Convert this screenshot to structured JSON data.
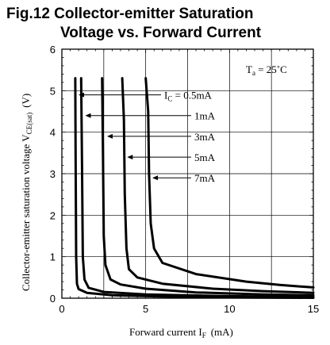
{
  "figure": {
    "title_line1": "Fig.12 Collector-emitter Saturation",
    "title_line2": "Voltage vs. Forward Current"
  },
  "chart_data": {
    "type": "line",
    "title": "Fig.12 Collector-emitter Saturation Voltage vs. Forward Current",
    "xlabel": "Forward current I",
    "xlabel_sub": "F",
    "xlabel_unit": "(mA)",
    "ylabel": "Collector-emitter saturation voltage V",
    "ylabel_sub": "CE(sat)",
    "ylabel_unit": "(V)",
    "xlim": [
      0,
      15
    ],
    "ylim": [
      0,
      6
    ],
    "xticks": [
      0,
      5,
      10,
      15
    ],
    "yticks": [
      0,
      1,
      2,
      3,
      4,
      5,
      6
    ],
    "grid": true,
    "annotation": {
      "main": "T",
      "sub": "a",
      "rest": " = 25˚C"
    },
    "series": [
      {
        "name": "I_C = 0.5mA",
        "label_main": "I",
        "label_sub": "C",
        "label_rest": " = 0.5mA",
        "points": [
          [
            0.8,
            5.3
          ],
          [
            0.82,
            3.5
          ],
          [
            0.85,
            1.0
          ],
          [
            0.9,
            0.35
          ],
          [
            1.0,
            0.22
          ],
          [
            1.5,
            0.13
          ],
          [
            3,
            0.07
          ],
          [
            6,
            0.04
          ],
          [
            10,
            0.02
          ],
          [
            15,
            0.01
          ]
        ]
      },
      {
        "name": "1mA",
        "label_main": "1mA",
        "label_sub": "",
        "label_rest": "",
        "points": [
          [
            1.15,
            5.3
          ],
          [
            1.2,
            3.2
          ],
          [
            1.25,
            1.0
          ],
          [
            1.35,
            0.45
          ],
          [
            1.6,
            0.25
          ],
          [
            2.5,
            0.15
          ],
          [
            5,
            0.09
          ],
          [
            10,
            0.05
          ],
          [
            15,
            0.03
          ]
        ]
      },
      {
        "name": "3mA",
        "label_main": "3mA",
        "label_sub": "",
        "label_rest": "",
        "points": [
          [
            2.4,
            5.3
          ],
          [
            2.45,
            3.5
          ],
          [
            2.5,
            1.5
          ],
          [
            2.6,
            0.8
          ],
          [
            2.9,
            0.45
          ],
          [
            3.5,
            0.33
          ],
          [
            5,
            0.23
          ],
          [
            8,
            0.14
          ],
          [
            12,
            0.09
          ],
          [
            15,
            0.07
          ]
        ]
      },
      {
        "name": "5mA",
        "label_main": "5mA",
        "label_sub": "",
        "label_rest": "",
        "points": [
          [
            3.6,
            5.3
          ],
          [
            3.7,
            4.3
          ],
          [
            3.75,
            2.5
          ],
          [
            3.85,
            1.2
          ],
          [
            4.0,
            0.7
          ],
          [
            4.5,
            0.5
          ],
          [
            6,
            0.35
          ],
          [
            9,
            0.23
          ],
          [
            12,
            0.17
          ],
          [
            15,
            0.13
          ]
        ]
      },
      {
        "name": "7mA",
        "label_main": "7mA",
        "label_sub": "",
        "label_rest": "",
        "points": [
          [
            5.0,
            5.3
          ],
          [
            5.15,
            4.5
          ],
          [
            5.2,
            3.0
          ],
          [
            5.3,
            1.8
          ],
          [
            5.5,
            1.2
          ],
          [
            6.0,
            0.85
          ],
          [
            8,
            0.58
          ],
          [
            11,
            0.4
          ],
          [
            13,
            0.32
          ],
          [
            15,
            0.26
          ]
        ]
      }
    ]
  }
}
